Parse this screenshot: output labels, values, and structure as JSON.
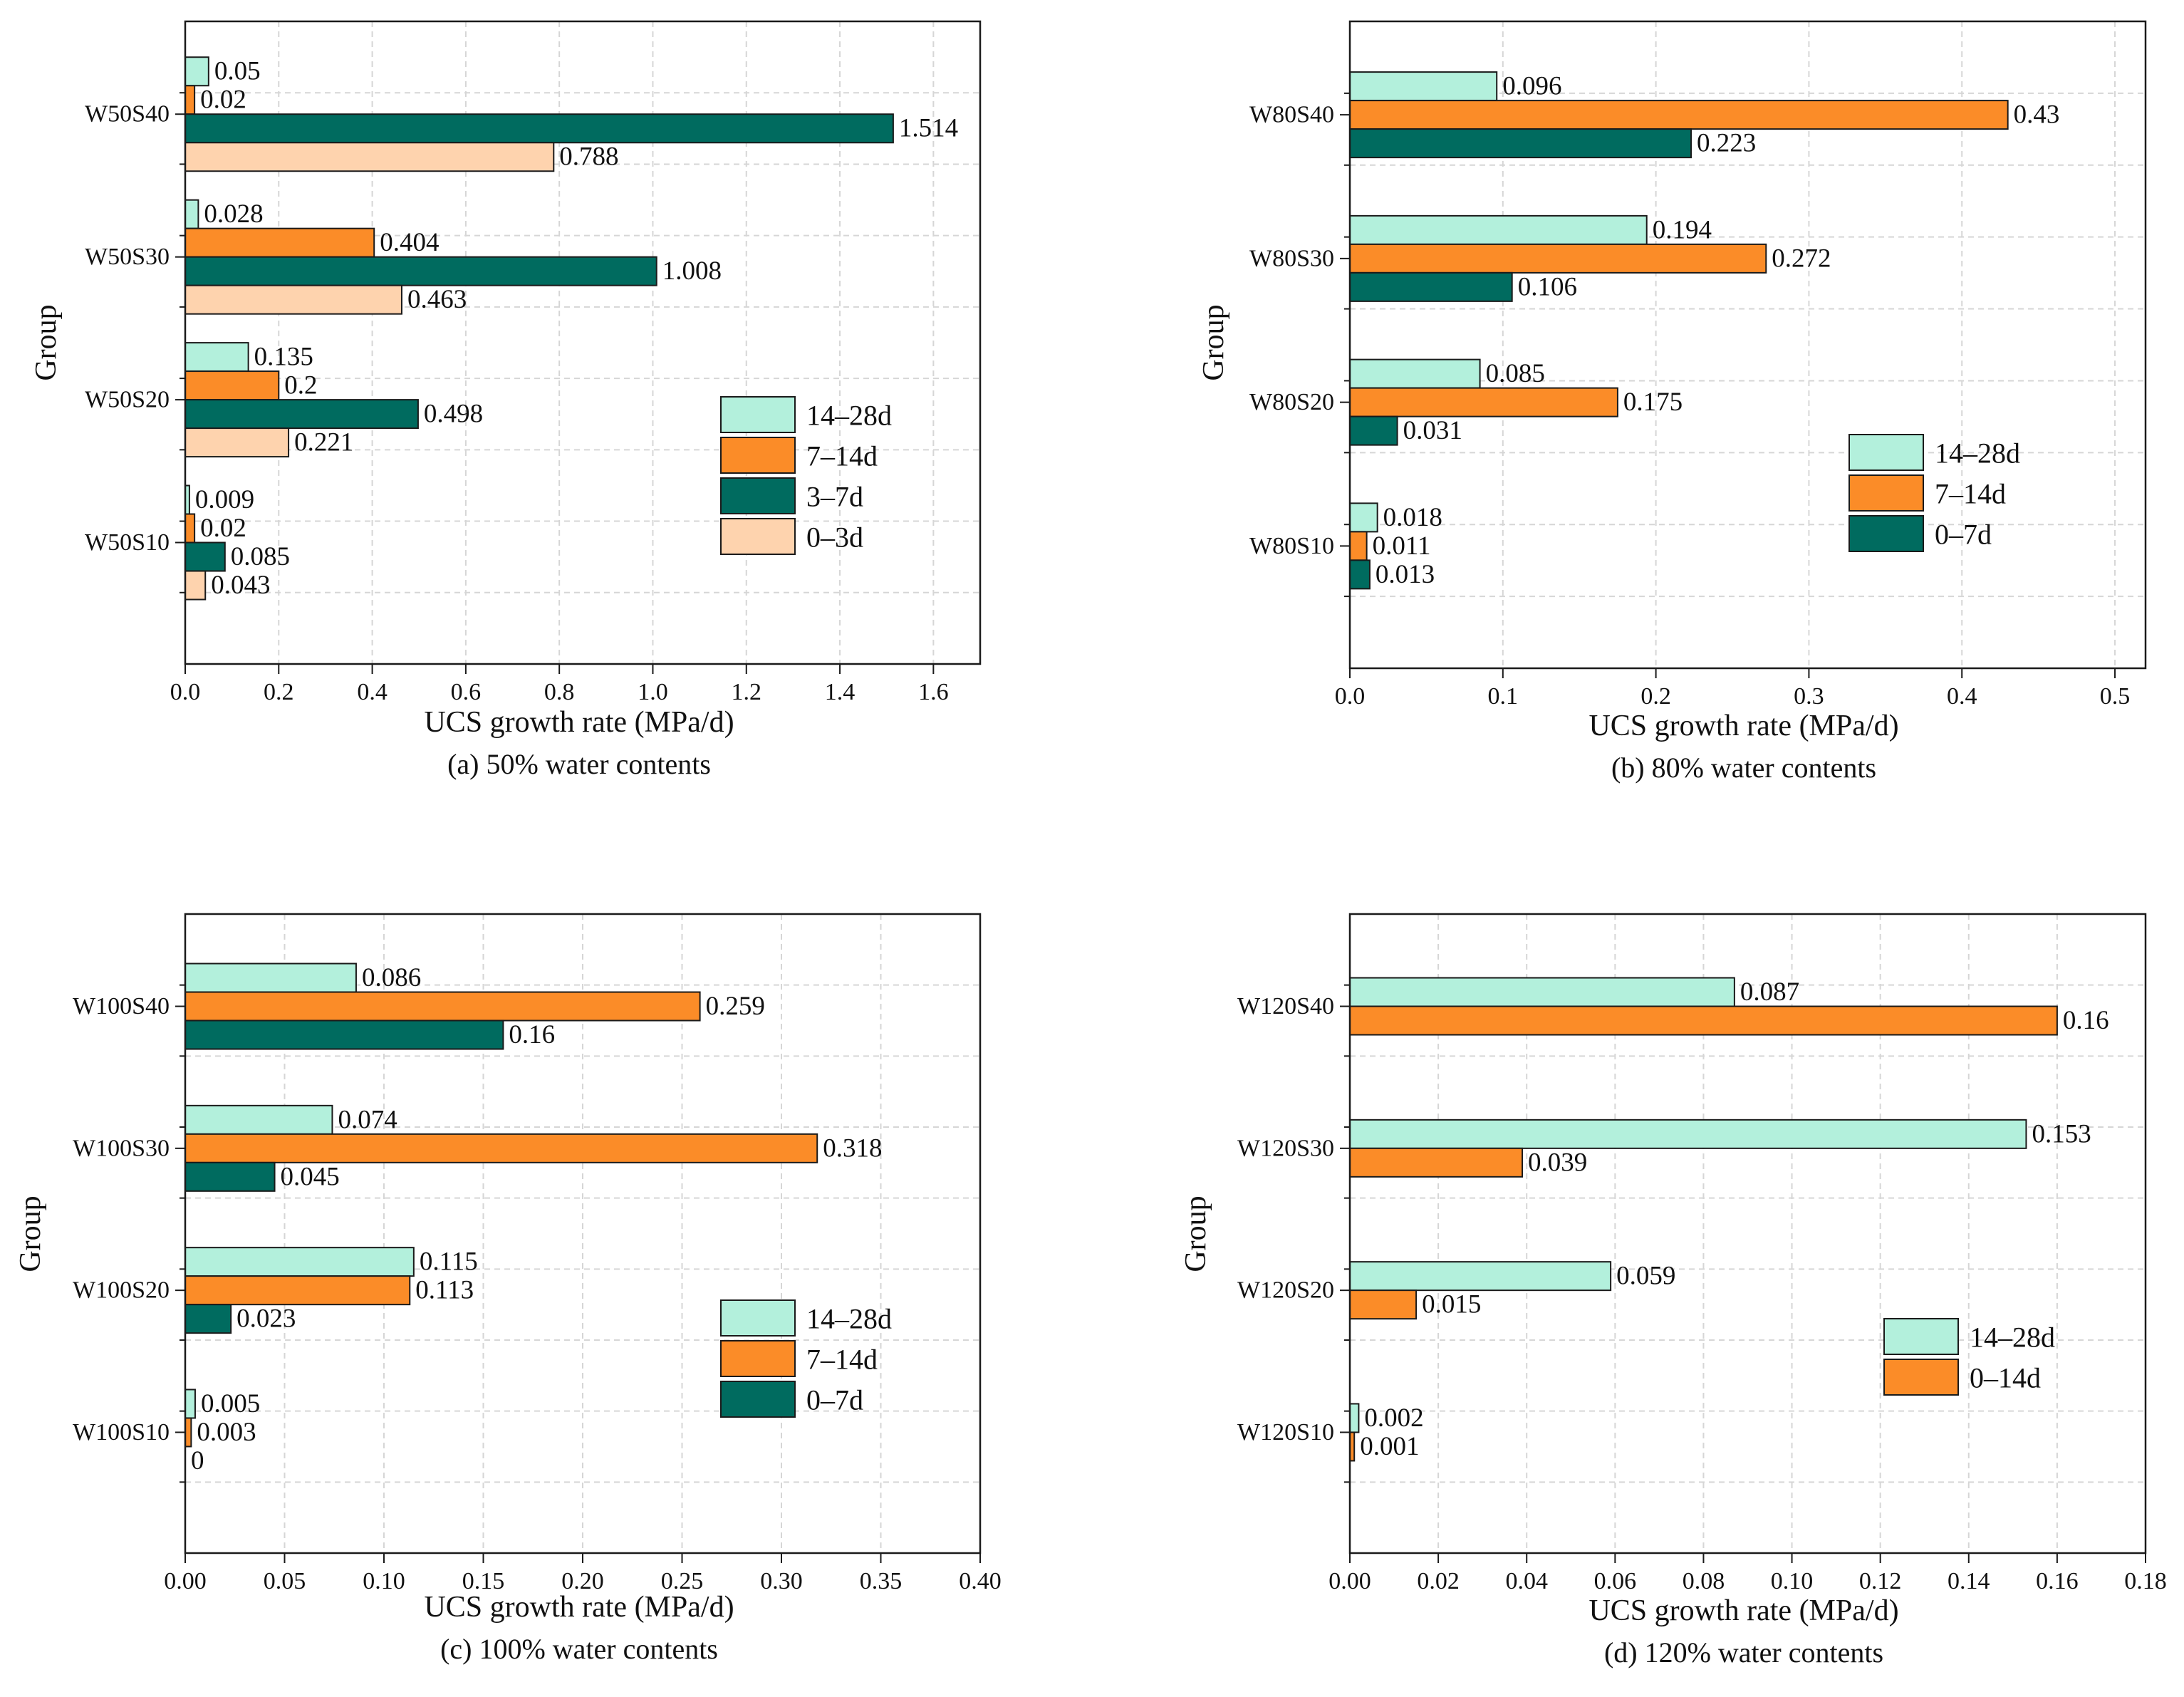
{
  "colors": {
    "s14_28": "#b3f0dc",
    "s7_14": "#fb8c28",
    "s3_7": "#006b5f",
    "s0_3": "#fed3ae"
  },
  "chart_data": [
    {
      "type": "bar",
      "orientation": "horizontal",
      "caption": "(a) 50% water contents",
      "xlabel": "UCS growth rate (MPa/d)",
      "ylabel": "Group",
      "xlim": [
        0,
        1.7
      ],
      "xticks": [
        0,
        0.2,
        0.4,
        0.6,
        0.8,
        1.0,
        1.2,
        1.4,
        1.6
      ],
      "xtick_labels": [
        "0.0",
        "0.2",
        "0.4",
        "0.6",
        "0.8",
        "1.0",
        "1.2",
        "1.4",
        "1.6"
      ],
      "categories": [
        "W50S40",
        "W50S30",
        "W50S20",
        "W50S10"
      ],
      "series": [
        {
          "name": "14–28d",
          "color": "#b3f0dc",
          "values": [
            0.05,
            0.028,
            0.135,
            0.009
          ],
          "labels": [
            "0.05",
            "0.028",
            "0.135",
            "0.009"
          ]
        },
        {
          "name": "7–14d",
          "color": "#fb8c28",
          "values": [
            0.02,
            0.404,
            0.2,
            0.02
          ],
          "labels": [
            "0.02",
            "0.404",
            "0.2",
            "0.02"
          ]
        },
        {
          "name": "3–7d",
          "color": "#006b5f",
          "values": [
            1.514,
            1.008,
            0.498,
            0.085
          ],
          "labels": [
            "1.514",
            "1.008",
            "0.498",
            "0.085"
          ]
        },
        {
          "name": "0–3d",
          "color": "#fed3ae",
          "values": [
            0.788,
            0.463,
            0.221,
            0.043
          ],
          "labels": [
            "0.788",
            "0.463",
            "0.221",
            "0.043"
          ]
        }
      ],
      "legend": "center-right",
      "grid": true
    },
    {
      "type": "bar",
      "orientation": "horizontal",
      "caption": "(b) 80% water contents",
      "xlabel": "UCS growth rate (MPa/d)",
      "ylabel": "Group",
      "xlim": [
        0,
        0.52
      ],
      "xticks": [
        0,
        0.1,
        0.2,
        0.3,
        0.4,
        0.5
      ],
      "xtick_labels": [
        "0.0",
        "0.1",
        "0.2",
        "0.3",
        "0.4",
        "0.5"
      ],
      "categories": [
        "W80S40",
        "W80S30",
        "W80S20",
        "W80S10"
      ],
      "series": [
        {
          "name": "14–28d",
          "color": "#b3f0dc",
          "values": [
            0.096,
            0.194,
            0.085,
            0.018
          ],
          "labels": [
            "0.096",
            "0.194",
            "0.085",
            "0.018"
          ]
        },
        {
          "name": "7–14d",
          "color": "#fb8c28",
          "values": [
            0.43,
            0.272,
            0.175,
            0.011
          ],
          "labels": [
            "0.43",
            "0.272",
            "0.175",
            "0.011"
          ]
        },
        {
          "name": "0–7d",
          "color": "#006b5f",
          "values": [
            0.223,
            0.106,
            0.031,
            0.013
          ],
          "labels": [
            "0.223",
            "0.106",
            "0.031",
            "0.013"
          ]
        }
      ],
      "legend": "center-right",
      "grid": true
    },
    {
      "type": "bar",
      "orientation": "horizontal",
      "caption": "(c) 100% water contents",
      "xlabel": "UCS growth rate (MPa/d)",
      "ylabel": "Group",
      "xlim": [
        0,
        0.4
      ],
      "xticks": [
        0,
        0.05,
        0.1,
        0.15,
        0.2,
        0.25,
        0.3,
        0.35,
        0.4
      ],
      "xtick_labels": [
        "0.00",
        "0.05",
        "0.10",
        "0.15",
        "0.20",
        "0.25",
        "0.30",
        "0.35",
        "0.40"
      ],
      "categories": [
        "W100S40",
        "W100S30",
        "W100S20",
        "W100S10"
      ],
      "series": [
        {
          "name": "14–28d",
          "color": "#b3f0dc",
          "values": [
            0.086,
            0.074,
            0.115,
            0.005
          ],
          "labels": [
            "0.086",
            "0.074",
            "0.115",
            "0.005"
          ]
        },
        {
          "name": "7–14d",
          "color": "#fb8c28",
          "values": [
            0.259,
            0.318,
            0.113,
            0.003
          ],
          "labels": [
            "0.259",
            "0.318",
            "0.113",
            "0.003"
          ]
        },
        {
          "name": "0–7d",
          "color": "#006b5f",
          "values": [
            0.16,
            0.045,
            0.023,
            0
          ],
          "labels": [
            "0.16",
            "0.045",
            "0.023",
            "0"
          ]
        }
      ],
      "legend": "center-right",
      "grid": true
    },
    {
      "type": "bar",
      "orientation": "horizontal",
      "caption": "(d) 120% water contents",
      "xlabel": "UCS growth rate (MPa/d)",
      "ylabel": "Group",
      "xlim": [
        0,
        0.18
      ],
      "xticks": [
        0,
        0.02,
        0.04,
        0.06,
        0.08,
        0.1,
        0.12,
        0.14,
        0.16,
        0.18
      ],
      "xtick_labels": [
        "0.00",
        "0.02",
        "0.04",
        "0.06",
        "0.08",
        "0.10",
        "0.12",
        "0.14",
        "0.16",
        "0.18"
      ],
      "categories": [
        "W120S40",
        "W120S30",
        "W120S20",
        "W120S10"
      ],
      "series": [
        {
          "name": "14–28d",
          "color": "#b3f0dc",
          "values": [
            0.087,
            0.153,
            0.059,
            0.002
          ],
          "labels": [
            "0.087",
            "0.153",
            "0.059",
            "0.002"
          ]
        },
        {
          "name": "0–14d",
          "color": "#fb8c28",
          "values": [
            0.16,
            0.039,
            0.015,
            0.001
          ],
          "labels": [
            "0.16",
            "0.039",
            "0.015",
            "0.001"
          ]
        }
      ],
      "legend": "center-right",
      "grid": true
    }
  ]
}
